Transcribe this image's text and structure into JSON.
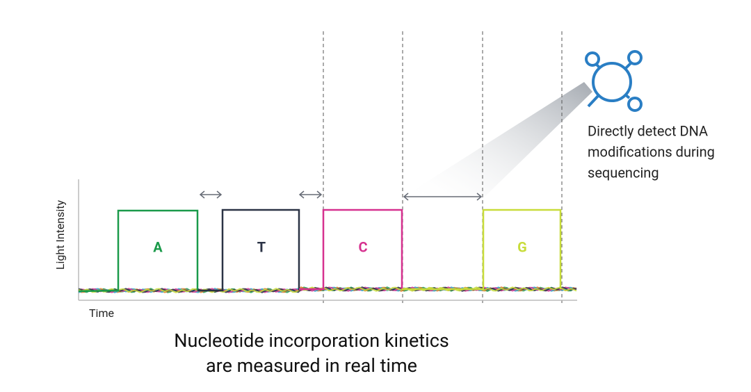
{
  "y_axis_label": "Light Intensity",
  "x_axis_label": "Time",
  "pulses": [
    {
      "label": "A"
    },
    {
      "label": "T"
    },
    {
      "label": "C"
    },
    {
      "label": "G"
    }
  ],
  "annotation": {
    "lines": [
      "Directly detect DNA",
      "modifications during",
      "sequencing"
    ]
  },
  "caption": {
    "lines": [
      "Nucleotide incorporation kinetics",
      "are measured in real time"
    ]
  }
}
